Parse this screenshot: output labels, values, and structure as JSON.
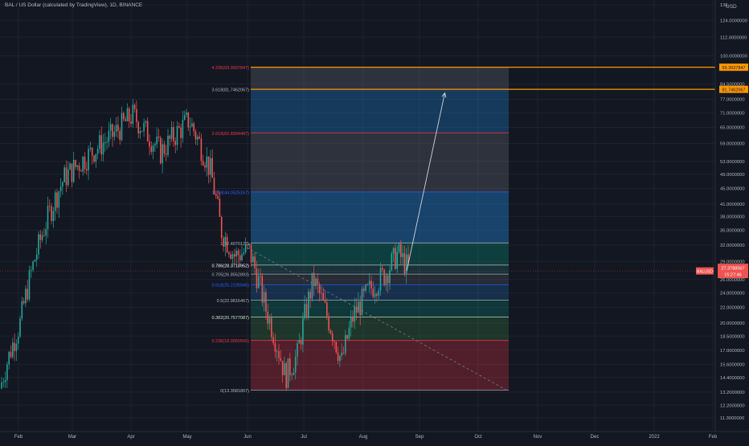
{
  "header": {
    "title": "BAL / US Dollar (calculated by TradingView), 1D, BINANCE"
  },
  "currency_label": "USD",
  "colors": {
    "background": "#131722",
    "grid": "#1e222d",
    "candle_up": "#26a69a",
    "candle_down": "#ef5350",
    "axis_text": "#b2b5be",
    "orange_line": "#ff9800",
    "arrow": "#d1d4dc",
    "price_tag": "#ef5350"
  },
  "chart_data": {
    "type": "candlestick",
    "symbol": "BAL / US Dollar",
    "timeframe": "1D",
    "exchange": "BINANCE",
    "x_axis_labels": [
      "Feb",
      "Mar",
      "Apr",
      "May",
      "Jun",
      "Jul",
      "Aug",
      "Sep",
      "Oct",
      "Nov",
      "Dec",
      "2022",
      "Feb"
    ],
    "y_axis_labels": [
      "136",
      "124.0000000",
      "112.0000000",
      "100.0000000",
      "84.5000000",
      "77.0000000",
      "71.0000000",
      "65.0000000",
      "59.0000000",
      "53.0000000",
      "49.0000000",
      "45.0000000",
      "41.0000000",
      "38.0000000",
      "35.0000000",
      "32.0000000",
      "29.0000000",
      "26.0000000",
      "24.0000000",
      "22.0000000",
      "20.0000000",
      "18.5000000",
      "17.0000000",
      "15.6000000",
      "14.4000000",
      "13.2000000",
      "12.2000000",
      "11.3000000"
    ],
    "y_scale": "log",
    "y_range": [
      11.0,
      137.0
    ],
    "fib_levels": [
      {
        "label": "4.236(93.3937847)",
        "value": 93.39,
        "fill": "rgba(120,123,134,0.28)",
        "text_color": "#f23645"
      },
      {
        "label": "3.618(81.7462067)",
        "value": 81.75,
        "fill": "rgba(33,150,243,0.28)",
        "text_color": "#b2b5be"
      },
      {
        "label": "2.618(62.8994487)",
        "value": 62.9,
        "fill": "rgba(120,123,134,0.28)",
        "text_color": "#f23645"
      },
      {
        "label": "1.618(44.0525167)",
        "value": 44.05,
        "fill": "rgba(33,150,243,0.35)",
        "text_color": "#2962ff"
      },
      {
        "label": "1(32.4070127)",
        "value": 32.41,
        "fill": "rgba(8,153,129,0.30)",
        "text_color": "#b2b5be"
      },
      {
        "label": "0.786(28.3718952)",
        "value": 28.37,
        "fill": "rgba(38,166,154,0.20)",
        "text_color": "#ffffff"
      },
      {
        "label": "0.705(26.8552893)",
        "value": 26.86,
        "fill": "rgba(120,123,134,0.20)",
        "text_color": "#b2b5be"
      },
      {
        "label": "0.618(25.2105946)",
        "value": 25.21,
        "fill": "rgba(33,150,243,0.20)",
        "text_color": "#2962ff"
      },
      {
        "label": "0.5(22.9816467)",
        "value": 22.98,
        "fill": "rgba(8,153,129,0.25)",
        "text_color": "#b2b5be"
      },
      {
        "label": "0.382(20.7577087)",
        "value": 20.76,
        "fill": "rgba(76,175,80,0.20)",
        "text_color": "#c8e6c9"
      },
      {
        "label": "0.236(18.0060566)",
        "value": 18.01,
        "fill": "rgba(242,54,69,0.28)",
        "text_color": "#f23645"
      },
      {
        "label": "0(13.3581807)",
        "value": 13.36,
        "fill": "",
        "text_color": "#b2b5be"
      }
    ],
    "horizontal_lines": [
      {
        "value": 93.39,
        "tag": "93.3937847",
        "color": "#ff9800"
      },
      {
        "value": 81.75,
        "tag": "81.7462067",
        "color": "#ff9800"
      }
    ],
    "current_price": {
      "label": "BALUSD",
      "value": "27.3788567",
      "sub": "15:27:46",
      "level": 27.38
    },
    "arrow": {
      "from_date": "Aug 24",
      "from_value": 27.4,
      "to_date": "Sep 13",
      "to_value": 80.0
    },
    "trend_line": {
      "from_date": "Jun 1",
      "from_value": 31.5,
      "to_date": "Oct 15",
      "to_value": 13.4
    }
  }
}
